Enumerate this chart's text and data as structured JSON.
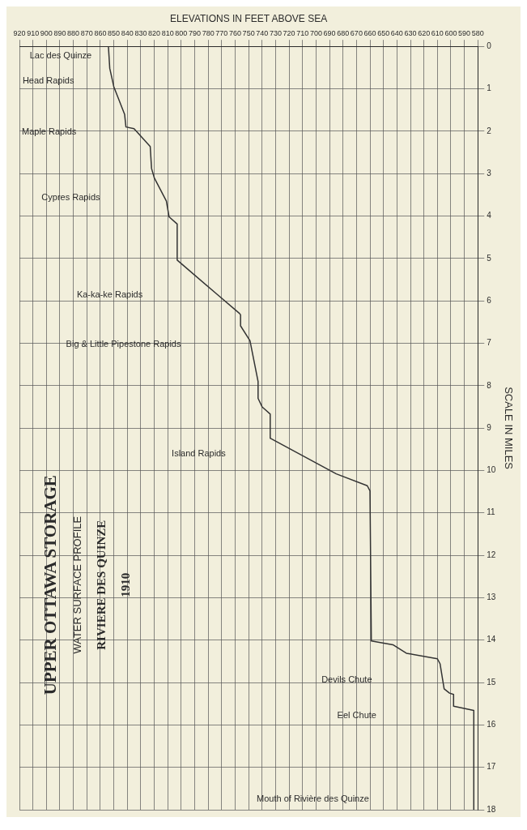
{
  "chart_data": {
    "type": "line",
    "title": "UPPER OTTAWA STORAGE",
    "subtitle": "WATER SURFACE PROFILE",
    "xlabel": "ELEVATIONS IN FEET ABOVE SEA",
    "ylabel": "SCALE IN MILES",
    "annotations": [
      "RIVIERE DES QUINZE",
      "1910",
      "Lac des Quinze",
      "Head Rapids",
      "Maple Rapids",
      "Cypres Rapids",
      "Ka-ka-ke Rapids",
      "Big & Little Pipestone Rapids",
      "Island Rapids",
      "Devils Chute",
      "Eel Chute",
      "Mouth of Rivière des Quinze"
    ],
    "series": [
      {
        "color": "#333333",
        "x": [
          854,
          853,
          850,
          842,
          841,
          835,
          823,
          822,
          820,
          811,
          809,
          803,
          803,
          774,
          757,
          756,
          756,
          749,
          743,
          743,
          740,
          734,
          734,
          685,
          662,
          660,
          659,
          643,
          633,
          610,
          608,
          605,
          601,
          598,
          598,
          583,
          583
        ],
        "values": [
          0,
          0.52,
          0.95,
          1.6,
          1.9,
          1.94,
          2.36,
          2.88,
          3.1,
          3.65,
          4.02,
          4.19,
          5.04,
          5.83,
          6.29,
          6.33,
          6.59,
          6.94,
          7.9,
          8.3,
          8.5,
          8.67,
          9.24,
          10.08,
          10.36,
          10.48,
          14.02,
          14.11,
          14.31,
          14.44,
          14.56,
          15.15,
          15.25,
          15.28,
          15.56,
          15.66,
          18
        ]
      }
    ],
    "xlim": [
      920,
      580
    ],
    "xticks": [
      580,
      590,
      600,
      610,
      620,
      630,
      640,
      650,
      660,
      670,
      680,
      690,
      700,
      710,
      720,
      730,
      740,
      750,
      760,
      770,
      780,
      790,
      800,
      810,
      820,
      830,
      840,
      850,
      860,
      870,
      880,
      890,
      900,
      910,
      920
    ],
    "ylim": [
      18,
      0
    ],
    "yticks": [
      0,
      1,
      2,
      3,
      4,
      5,
      6,
      7,
      8,
      9,
      10,
      11,
      12,
      13,
      14,
      15,
      16,
      17,
      18
    ],
    "grid": true,
    "legend": false,
    "marker": "none",
    "line_style": "solid"
  }
}
